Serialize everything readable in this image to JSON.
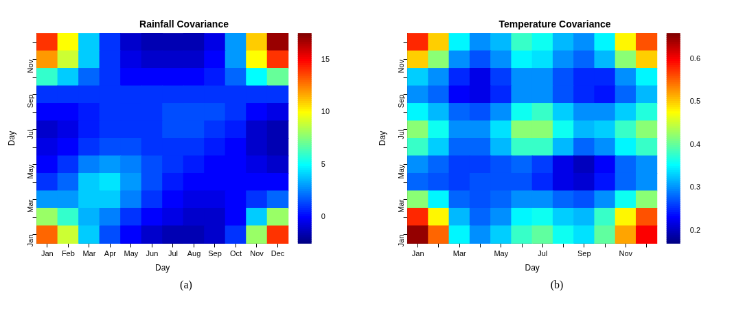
{
  "chart_data": [
    {
      "type": "heatmap",
      "title": "Rainfall Covariance",
      "xlabel": "Day",
      "ylabel": "Day",
      "grid": false,
      "legend": false,
      "categories": [
        "Jan",
        "Feb",
        "Mar",
        "Apr",
        "May",
        "Jun",
        "Jul",
        "Aug",
        "Sep",
        "Oct",
        "Nov",
        "Dec"
      ],
      "y_categories": [
        null,
        "Nov",
        null,
        "Sep",
        null,
        "Jul",
        null,
        "May",
        null,
        "Mar",
        null,
        "Jan"
      ],
      "cells": [
        [
          14,
          10,
          4,
          1,
          -1,
          -1.5,
          -1.5,
          -1.5,
          -0.5,
          3,
          11,
          17
        ],
        [
          12,
          9,
          4,
          1,
          -0.5,
          -1,
          -1,
          -1,
          0,
          3,
          10,
          14
        ],
        [
          6,
          4,
          2,
          1,
          0,
          0,
          0,
          0,
          0.5,
          2,
          5,
          7
        ],
        [
          1,
          1,
          1,
          1,
          1,
          1,
          1,
          1,
          1,
          1,
          1,
          1
        ],
        [
          0,
          0,
          0.5,
          1,
          1,
          1,
          1.5,
          1.5,
          1.5,
          1,
          0,
          -0.5
        ],
        [
          -1,
          -0.5,
          0.5,
          1,
          1,
          1,
          1.5,
          1.5,
          1,
          0.5,
          -1,
          -1.5
        ],
        [
          -0.5,
          0,
          1,
          1.5,
          1.5,
          1,
          1,
          1,
          0.5,
          0,
          -1,
          -1.5
        ],
        [
          0,
          1,
          2.5,
          3,
          2.5,
          1.5,
          1,
          0.5,
          0,
          0,
          -0.5,
          -1
        ],
        [
          1,
          2,
          4,
          4.5,
          3,
          1.5,
          0.5,
          0,
          0,
          0,
          0,
          0
        ],
        [
          3,
          3,
          4,
          4,
          2.5,
          1,
          0,
          -0.5,
          -0.5,
          0,
          1,
          2
        ],
        [
          8,
          6,
          3.5,
          2.5,
          1,
          0,
          -0.5,
          -1,
          -1,
          0,
          4,
          8
        ],
        [
          13,
          9,
          4,
          1.5,
          0,
          -1,
          -1.5,
          -1.5,
          -1,
          1,
          8,
          14
        ]
      ],
      "clim": [
        -2.5,
        17.5
      ],
      "cticks": [
        0,
        5,
        10,
        15
      ],
      "annotations": [
        "(a)"
      ]
    },
    {
      "type": "heatmap",
      "title": "Temperature Covariance",
      "xlabel": "Day",
      "ylabel": "Day",
      "grid": false,
      "legend": false,
      "categories": [
        "Jan",
        null,
        "Mar",
        null,
        "May",
        null,
        "Jul",
        null,
        "Sep",
        null,
        "Nov",
        null
      ],
      "y_categories": [
        null,
        "Nov",
        null,
        "Sep",
        null,
        "Jul",
        null,
        "May",
        null,
        "Mar",
        null,
        "Jan"
      ],
      "cells": [
        [
          0.58,
          0.5,
          0.35,
          0.3,
          0.32,
          0.38,
          0.36,
          0.32,
          0.3,
          0.35,
          0.48,
          0.56
        ],
        [
          0.5,
          0.42,
          0.3,
          0.27,
          0.3,
          0.35,
          0.34,
          0.3,
          0.28,
          0.32,
          0.42,
          0.5
        ],
        [
          0.33,
          0.3,
          0.25,
          0.22,
          0.26,
          0.3,
          0.3,
          0.27,
          0.25,
          0.25,
          0.3,
          0.35
        ],
        [
          0.3,
          0.28,
          0.23,
          0.22,
          0.25,
          0.3,
          0.3,
          0.27,
          0.25,
          0.24,
          0.28,
          0.32
        ],
        [
          0.35,
          0.32,
          0.28,
          0.27,
          0.3,
          0.36,
          0.38,
          0.33,
          0.3,
          0.3,
          0.33,
          0.37
        ],
        [
          0.42,
          0.36,
          0.3,
          0.3,
          0.34,
          0.42,
          0.42,
          0.36,
          0.32,
          0.33,
          0.38,
          0.42
        ],
        [
          0.38,
          0.33,
          0.28,
          0.28,
          0.32,
          0.38,
          0.38,
          0.32,
          0.28,
          0.3,
          0.35,
          0.38
        ],
        [
          0.3,
          0.28,
          0.26,
          0.26,
          0.27,
          0.28,
          0.26,
          0.22,
          0.2,
          0.23,
          0.28,
          0.3
        ],
        [
          0.28,
          0.27,
          0.26,
          0.27,
          0.27,
          0.27,
          0.25,
          0.22,
          0.21,
          0.24,
          0.28,
          0.3
        ],
        [
          0.42,
          0.35,
          0.28,
          0.27,
          0.28,
          0.3,
          0.3,
          0.28,
          0.27,
          0.3,
          0.36,
          0.42
        ],
        [
          0.58,
          0.48,
          0.32,
          0.28,
          0.3,
          0.35,
          0.36,
          0.33,
          0.32,
          0.38,
          0.48,
          0.56
        ],
        [
          0.65,
          0.55,
          0.35,
          0.3,
          0.33,
          0.38,
          0.4,
          0.36,
          0.34,
          0.4,
          0.52,
          0.6
        ]
      ],
      "clim": [
        0.17,
        0.66
      ],
      "cticks": [
        0.2,
        0.3,
        0.4,
        0.5,
        0.6
      ],
      "annotations": [
        "(b)"
      ]
    }
  ]
}
